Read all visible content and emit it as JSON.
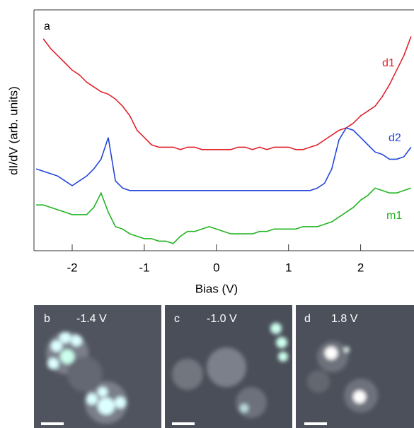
{
  "chart_data": {
    "type": "line",
    "panel_label": "a",
    "x_label": "Bias (V)",
    "y_label": "dI/dV (arb. units)",
    "x": [
      -2.5,
      -2.4,
      -2.3,
      -2.2,
      -2.1,
      -2.0,
      -1.9,
      -1.8,
      -1.7,
      -1.6,
      -1.5,
      -1.4,
      -1.3,
      -1.2,
      -1.1,
      -1.0,
      -0.9,
      -0.8,
      -0.7,
      -0.6,
      -0.5,
      -0.4,
      -0.3,
      -0.2,
      -0.1,
      0.0,
      0.1,
      0.2,
      0.3,
      0.4,
      0.5,
      0.6,
      0.7,
      0.8,
      0.9,
      1.0,
      1.1,
      1.2,
      1.3,
      1.4,
      1.5,
      1.6,
      1.7,
      1.8,
      1.9,
      2.0,
      2.1,
      2.2,
      2.3,
      2.4,
      2.5,
      2.6,
      2.7
    ],
    "series": [
      {
        "name": "d1",
        "color": "#e0222a",
        "values": [
          null,
          8.8,
          8.4,
          8.1,
          7.8,
          7.5,
          7.3,
          7.0,
          6.8,
          6.6,
          6.5,
          6.3,
          6.0,
          5.6,
          5.0,
          4.7,
          4.4,
          4.3,
          4.3,
          4.3,
          4.2,
          4.3,
          4.3,
          4.2,
          4.2,
          4.2,
          4.2,
          4.2,
          4.3,
          4.3,
          4.2,
          4.3,
          4.2,
          4.3,
          4.3,
          4.3,
          4.2,
          4.2,
          4.3,
          4.4,
          4.6,
          4.8,
          5.0,
          5.1,
          5.3,
          5.6,
          5.8,
          6.0,
          6.4,
          6.9,
          7.5,
          8.1,
          8.9
        ]
      },
      {
        "name": "d2",
        "color": "#2347d8",
        "values": [
          3.4,
          3.3,
          3.2,
          3.1,
          2.9,
          2.7,
          2.9,
          3.1,
          3.4,
          3.8,
          4.7,
          2.9,
          2.6,
          2.5,
          2.5,
          2.5,
          2.5,
          2.5,
          2.5,
          2.5,
          2.5,
          2.5,
          2.5,
          2.5,
          2.5,
          2.5,
          2.5,
          2.5,
          2.5,
          2.5,
          2.5,
          2.5,
          2.5,
          2.5,
          2.5,
          2.5,
          2.5,
          2.5,
          2.5,
          2.6,
          2.8,
          3.4,
          4.6,
          5.1,
          5.0,
          4.7,
          4.4,
          4.1,
          4.0,
          3.8,
          3.8,
          3.9,
          4.3
        ]
      },
      {
        "name": "m1",
        "color": "#22b422",
        "values": [
          1.9,
          1.9,
          1.8,
          1.7,
          1.6,
          1.5,
          1.5,
          1.5,
          1.8,
          2.4,
          1.6,
          1.0,
          0.9,
          0.7,
          0.6,
          0.5,
          0.5,
          0.4,
          0.4,
          0.3,
          0.6,
          0.8,
          0.8,
          0.9,
          1.0,
          0.9,
          0.8,
          0.7,
          0.7,
          0.7,
          0.7,
          0.8,
          0.8,
          0.9,
          0.9,
          0.9,
          0.9,
          1.0,
          1.0,
          1.0,
          1.1,
          1.2,
          1.4,
          1.6,
          1.8,
          2.1,
          2.3,
          2.6,
          2.5,
          2.4,
          2.4,
          2.5,
          2.6
        ]
      }
    ],
    "xlim": [
      -2.53,
      2.74
    ],
    "xticks": [
      -2,
      -1,
      0,
      1,
      2
    ],
    "ylim": [
      0,
      10
    ]
  },
  "panels": [
    {
      "label": "b",
      "bias": "-1.4 V"
    },
    {
      "label": "c",
      "bias": "-1.0 V"
    },
    {
      "label": "d",
      "bias": "1.8 V"
    }
  ]
}
